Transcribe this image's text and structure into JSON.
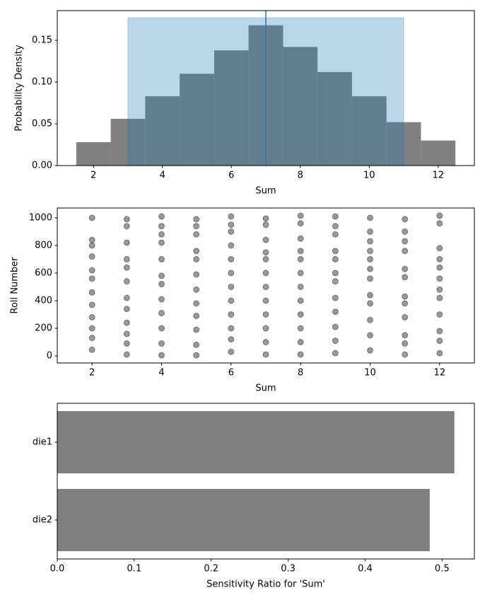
{
  "chart_data": [
    {
      "type": "histogram",
      "xlabel": "Sum",
      "ylabel": "Probability Density",
      "bins": [
        1.5,
        2.5,
        3.5,
        4.5,
        5.5,
        6.5,
        7.5,
        8.5,
        9.5,
        10.5,
        11.5,
        12.5
      ],
      "values": [
        0.028,
        0.056,
        0.083,
        0.11,
        0.138,
        0.168,
        0.142,
        0.112,
        0.083,
        0.052,
        0.03
      ],
      "color": "#808080",
      "span": {
        "x": [
          3,
          11
        ],
        "ymax": 0.177,
        "color": "#1f77b4"
      },
      "vline": 7,
      "vline_color": "#1f77b4",
      "xlim": [
        0.95,
        13.05
      ],
      "ylim": [
        0,
        0.1856
      ],
      "xticks": [
        2,
        4,
        6,
        8,
        10,
        12
      ],
      "yticks": [
        {
          "value": 0,
          "label": "0.00"
        },
        {
          "value": 0.05,
          "label": "0.05"
        },
        {
          "value": 0.1,
          "label": "0.10"
        },
        {
          "value": 0.15,
          "label": "0.15"
        }
      ]
    },
    {
      "type": "scatter",
      "xlabel": "Sum",
      "ylabel": "Roll Number",
      "color": "#000000",
      "x": [
        2,
        2,
        2,
        2,
        2,
        2,
        2,
        2,
        2,
        2,
        2,
        2,
        3,
        3,
        3,
        3,
        3,
        3,
        3,
        3,
        3,
        3,
        3,
        3,
        4,
        4,
        4,
        4,
        4,
        4,
        4,
        4,
        4,
        4,
        4,
        4,
        5,
        5,
        5,
        5,
        5,
        5,
        5,
        5,
        5,
        5,
        5,
        5,
        6,
        6,
        6,
        6,
        6,
        6,
        6,
        6,
        6,
        6,
        6,
        6,
        7,
        7,
        7,
        7,
        7,
        7,
        7,
        7,
        7,
        7,
        7,
        7,
        8,
        8,
        8,
        8,
        8,
        8,
        8,
        8,
        8,
        8,
        8,
        8,
        9,
        9,
        9,
        9,
        9,
        9,
        9,
        9,
        9,
        9,
        9,
        9,
        10,
        10,
        10,
        10,
        10,
        10,
        10,
        10,
        10,
        10,
        10,
        10,
        11,
        11,
        11,
        11,
        11,
        11,
        11,
        11,
        11,
        11,
        11,
        11,
        12,
        12,
        12,
        12,
        12,
        12,
        12,
        12,
        12,
        12,
        12,
        12
      ],
      "y": [
        45,
        130,
        200,
        280,
        370,
        460,
        560,
        620,
        720,
        800,
        840,
        1000,
        10,
        90,
        160,
        240,
        340,
        420,
        540,
        640,
        700,
        820,
        940,
        990,
        5,
        90,
        200,
        310,
        410,
        520,
        580,
        700,
        820,
        880,
        940,
        1010,
        5,
        80,
        190,
        290,
        380,
        480,
        590,
        700,
        760,
        880,
        940,
        990,
        30,
        120,
        200,
        300,
        400,
        500,
        600,
        700,
        800,
        900,
        950,
        1010,
        10,
        100,
        200,
        300,
        400,
        500,
        600,
        700,
        750,
        840,
        950,
        995,
        10,
        100,
        200,
        300,
        400,
        500,
        600,
        700,
        760,
        850,
        960,
        1015,
        20,
        110,
        210,
        320,
        420,
        540,
        600,
        700,
        760,
        880,
        940,
        1010,
        40,
        150,
        260,
        380,
        440,
        560,
        630,
        700,
        760,
        830,
        900,
        1000,
        10,
        90,
        150,
        280,
        380,
        430,
        570,
        630,
        760,
        830,
        900,
        990,
        20,
        110,
        180,
        300,
        420,
        480,
        560,
        640,
        700,
        780,
        960,
        1015
      ],
      "xlim": [
        1,
        13
      ],
      "ylim": [
        -51,
        1071
      ],
      "xticks": [
        2,
        4,
        6,
        8,
        10,
        12
      ],
      "yticks": [
        0,
        200,
        400,
        600,
        800,
        1000
      ]
    },
    {
      "type": "barh",
      "xlabel": "Sensitivity Ratio for 'Sum'",
      "color": "#808080",
      "categories": [
        "die1",
        "die2"
      ],
      "values": [
        0.516,
        0.484
      ],
      "xlim": [
        0,
        0.542
      ],
      "xticks": [
        {
          "value": 0,
          "label": "0.0"
        },
        0.1,
        0.2,
        0.3,
        0.4,
        0.5
      ]
    }
  ]
}
